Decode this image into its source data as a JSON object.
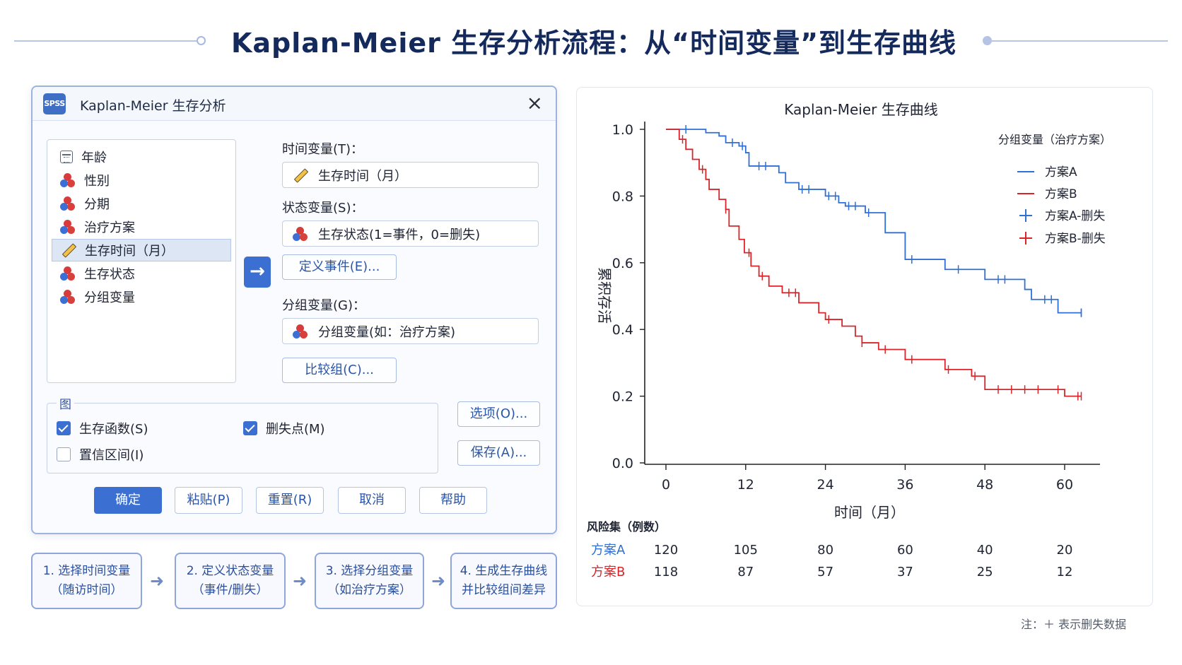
{
  "header": {
    "title": "Kaplan-Meier 生存分析流程：从“时间变量”到生存曲线"
  },
  "dialog": {
    "logo_text": "SPSS",
    "title": "Kaplan-Meier 生存分析",
    "close_glyph": "×",
    "variables": [
      {
        "label": "年龄",
        "icon": "calendar-icon"
      },
      {
        "label": "性别",
        "icon": "nominal-balls-icon"
      },
      {
        "label": "分期",
        "icon": "nominal-balls-icon"
      },
      {
        "label": "治疗方案",
        "icon": "nominal-balls-icon"
      },
      {
        "label": "生存时间（月）",
        "icon": "ruler-icon",
        "selected": true
      },
      {
        "label": "生存状态",
        "icon": "nominal-balls-icon"
      },
      {
        "label": "分组变量",
        "icon": "nominal-balls-icon"
      }
    ],
    "move_glyph": "→",
    "time_label": "时间变量(T)：",
    "time_value": "生存时间（月）",
    "status_label": "状态变量(S)：",
    "status_value": "生存状态(1=事件，0=删失)",
    "define_event_btn": "定义事件(E)...",
    "group_label": "分组变量(G)：",
    "group_value": "分组变量(如：治疗方案)",
    "compare_btn": "比较组(C)...",
    "plot_group": "图",
    "chk_survival": {
      "label": "生存函数(S)",
      "checked": true
    },
    "chk_censor": {
      "label": "删失点(M)",
      "checked": true
    },
    "chk_ci": {
      "label": "置信区间(I)",
      "checked": false
    },
    "options_btn": "选项(O)...",
    "save_btn": "保存(A)...",
    "ok_btn": "确定",
    "paste_btn": "粘贴(P)",
    "reset_btn": "重置(R)",
    "cancel_btn": "取消",
    "help_btn": "帮助"
  },
  "steps": [
    {
      "line1": "1. 选择时间变量",
      "line2": "（随访时间）"
    },
    {
      "line1": "2. 定义状态变量",
      "line2": "（事件/删失）"
    },
    {
      "line1": "3. 选择分组变量",
      "line2": "（如治疗方案）"
    },
    {
      "line1": "4. 生成生存曲线",
      "line2": "并比较组间差异"
    }
  ],
  "colors": {
    "accent": "#3b6fd1",
    "series_a": "#2f6fd6",
    "series_b": "#d9252a",
    "title": "#152a5c"
  },
  "chart_data": {
    "type": "line",
    "step": true,
    "title": "Kaplan-Meier 生存曲线",
    "xlabel": "时间（月）",
    "ylabel": "累积存活",
    "xlim": [
      0,
      65
    ],
    "ylim": [
      0,
      1.0
    ],
    "xticks": [
      0,
      12,
      24,
      36,
      48,
      60
    ],
    "yticks": [
      "0.0",
      "0.2",
      "0.4",
      "0.6",
      "0.8",
      "1.0"
    ],
    "legend_title": "分组变量（治疗方案）",
    "legend_position": "top-right",
    "series": [
      {
        "name": "方案A",
        "color": "#2f6fd6",
        "steps": [
          [
            0,
            1.0
          ],
          [
            6,
            0.99
          ],
          [
            8,
            0.98
          ],
          [
            9,
            0.96
          ],
          [
            11,
            0.95
          ],
          [
            12,
            0.93
          ],
          [
            12.5,
            0.89
          ],
          [
            17,
            0.87
          ],
          [
            18,
            0.84
          ],
          [
            20,
            0.82
          ],
          [
            24,
            0.8
          ],
          [
            26,
            0.78
          ],
          [
            27,
            0.77
          ],
          [
            30,
            0.75
          ],
          [
            33,
            0.69
          ],
          [
            36,
            0.61
          ],
          [
            42,
            0.58
          ],
          [
            48,
            0.55
          ],
          [
            54,
            0.52
          ],
          [
            55,
            0.49
          ],
          [
            59,
            0.45
          ],
          [
            65,
            0.45
          ]
        ],
        "censored": [
          [
            3,
            1.0
          ],
          [
            10,
            0.96
          ],
          [
            11.5,
            0.95
          ],
          [
            14,
            0.89
          ],
          [
            15,
            0.89
          ],
          [
            20.5,
            0.82
          ],
          [
            21.5,
            0.82
          ],
          [
            24.5,
            0.8
          ],
          [
            25.5,
            0.8
          ],
          [
            27.5,
            0.77
          ],
          [
            28.5,
            0.77
          ],
          [
            30.5,
            0.75
          ],
          [
            37,
            0.61
          ],
          [
            44,
            0.58
          ],
          [
            50,
            0.55
          ],
          [
            51,
            0.55
          ],
          [
            57,
            0.49
          ],
          [
            58,
            0.49
          ],
          [
            63,
            0.45
          ],
          [
            64,
            0.45
          ]
        ]
      },
      {
        "name": "方案B",
        "color": "#d9252a",
        "steps": [
          [
            0,
            1.0
          ],
          [
            2,
            0.97
          ],
          [
            3,
            0.94
          ],
          [
            4,
            0.91
          ],
          [
            5,
            0.88
          ],
          [
            6,
            0.85
          ],
          [
            6.5,
            0.82
          ],
          [
            8,
            0.79
          ],
          [
            9,
            0.76
          ],
          [
            9.5,
            0.71
          ],
          [
            11,
            0.67
          ],
          [
            11.8,
            0.63
          ],
          [
            12.8,
            0.59
          ],
          [
            14,
            0.56
          ],
          [
            15.5,
            0.53
          ],
          [
            17.5,
            0.51
          ],
          [
            20,
            0.48
          ],
          [
            23,
            0.45
          ],
          [
            24,
            0.43
          ],
          [
            26.5,
            0.41
          ],
          [
            28.5,
            0.38
          ],
          [
            29.5,
            0.36
          ],
          [
            32,
            0.34
          ],
          [
            36,
            0.31
          ],
          [
            42,
            0.28
          ],
          [
            46,
            0.26
          ],
          [
            48,
            0.22
          ],
          [
            60,
            0.2
          ],
          [
            65,
            0.2
          ]
        ],
        "censored": [
          [
            2.5,
            0.97
          ],
          [
            5.5,
            0.88
          ],
          [
            9,
            0.76
          ],
          [
            12.5,
            0.63
          ],
          [
            14.5,
            0.56
          ],
          [
            18.5,
            0.51
          ],
          [
            19.5,
            0.51
          ],
          [
            24.5,
            0.43
          ],
          [
            29.5,
            0.36
          ],
          [
            33,
            0.34
          ],
          [
            37,
            0.31
          ],
          [
            42.5,
            0.28
          ],
          [
            46.5,
            0.26
          ],
          [
            50,
            0.22
          ],
          [
            52,
            0.22
          ],
          [
            54,
            0.22
          ],
          [
            56,
            0.22
          ],
          [
            59,
            0.22
          ],
          [
            62,
            0.2
          ],
          [
            64,
            0.2
          ]
        ]
      }
    ],
    "censor_legend": [
      {
        "name": "方案A-删失",
        "color": "#2f6fd6"
      },
      {
        "name": "方案B-删失",
        "color": "#d9252a"
      }
    ],
    "risk_table": {
      "title": "风险集（例数）",
      "rows": [
        {
          "name": "方案A",
          "color": "#2f6fd6",
          "values": [
            120,
            105,
            80,
            60,
            40,
            20
          ]
        },
        {
          "name": "方案B",
          "color": "#d9252a",
          "values": [
            118,
            87,
            57,
            37,
            25,
            12
          ]
        }
      ]
    }
  },
  "note": "注：＋ 表示删失数据"
}
